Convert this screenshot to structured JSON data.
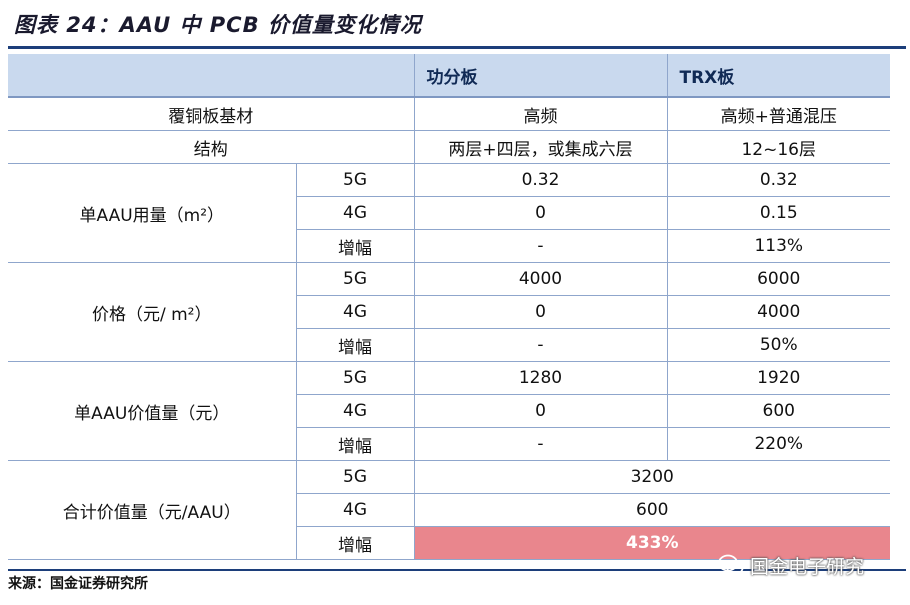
{
  "title": "图表 24：AAU 中 PCB 价值量变化情况",
  "header": {
    "col1": "功分板",
    "col2": "TRX板"
  },
  "info_rows": [
    {
      "label": "覆铜板基材",
      "col1": "高频",
      "col2": "高频+普通混压"
    },
    {
      "label": "结构",
      "col1": "两层+四层，或集成六层",
      "col2": "12~16层"
    }
  ],
  "groups": [
    {
      "label": "单AAU用量（m²）",
      "rows": [
        {
          "sub": "5G",
          "col1": "0.32",
          "col2": "0.32"
        },
        {
          "sub": "4G",
          "col1": "0",
          "col2": "0.15"
        },
        {
          "sub": "增幅",
          "col1": "-",
          "col2": "113%"
        }
      ]
    },
    {
      "label": "价格（元/ m²）",
      "rows": [
        {
          "sub": "5G",
          "col1": "4000",
          "col2": "6000"
        },
        {
          "sub": "4G",
          "col1": "0",
          "col2": "4000"
        },
        {
          "sub": "增幅",
          "col1": "-",
          "col2": "50%"
        }
      ]
    },
    {
      "label": "单AAU价值量（元）",
      "rows": [
        {
          "sub": "5G",
          "col1": "1280",
          "col2": "1920"
        },
        {
          "sub": "4G",
          "col1": "0",
          "col2": "600"
        },
        {
          "sub": "增幅",
          "col1": "-",
          "col2": "220%"
        }
      ]
    },
    {
      "label": "合计价值量（元/AAU）",
      "rows": [
        {
          "sub": "5G",
          "merged": "3200"
        },
        {
          "sub": "4G",
          "merged": "600"
        },
        {
          "sub": "增幅",
          "merged": "433%"
        }
      ]
    }
  ],
  "source": "来源：国金证券研究所",
  "watermark": "国金电子研究",
  "colors": {
    "header_bg": "#c9d9ee",
    "highlight": "#e9868d",
    "rule": "#1c3e7a"
  }
}
